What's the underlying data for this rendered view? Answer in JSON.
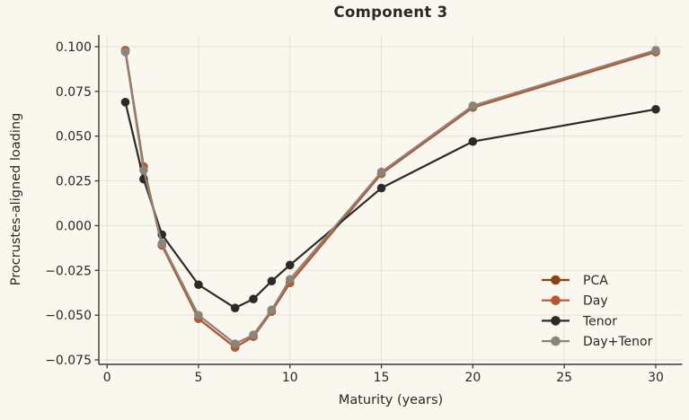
{
  "colors": {
    "background": "#faf7ef",
    "grid": "#e4e1d9",
    "axis": "#3b3833",
    "text": "#2b2823"
  },
  "chart_data": {
    "type": "line",
    "title": "Component 3",
    "xlabel": "Maturity (years)",
    "ylabel": "Procrustes-aligned loading",
    "x": [
      1,
      2,
      3,
      5,
      7,
      8,
      9,
      10,
      15,
      20,
      30
    ],
    "series": [
      {
        "name": "PCA",
        "color": "#8a4315",
        "values": [
          0.098,
          0.033,
          -0.011,
          -0.052,
          -0.068,
          -0.062,
          -0.048,
          -0.032,
          0.029,
          0.066,
          0.097
        ]
      },
      {
        "name": "Day",
        "color": "#b8562f",
        "values": [
          0.098,
          0.033,
          -0.011,
          -0.052,
          -0.068,
          -0.062,
          -0.048,
          -0.032,
          0.029,
          0.066,
          0.097
        ]
      },
      {
        "name": "Tenor",
        "color": "#2b2a28",
        "values": [
          0.069,
          0.026,
          -0.005,
          -0.033,
          -0.046,
          -0.041,
          -0.031,
          -0.022,
          0.021,
          0.047,
          0.065
        ]
      },
      {
        "name": "Day+Tenor",
        "color": "#8b847c",
        "values": [
          0.097,
          0.031,
          -0.01,
          -0.05,
          -0.066,
          -0.061,
          -0.047,
          -0.03,
          0.03,
          0.067,
          0.098
        ]
      }
    ],
    "xticks": [
      0,
      5,
      10,
      15,
      20,
      25,
      30
    ],
    "yticks": [
      0.1,
      0.075,
      0.05,
      0.025,
      0.0,
      -0.025,
      -0.05,
      -0.075
    ],
    "xlim": [
      -0.45,
      31.45
    ],
    "ylim": [
      -0.0775,
      0.1065
    ],
    "grid": true,
    "legend": {
      "position": "lower-right",
      "frame": false,
      "entries": [
        "PCA",
        "Day",
        "Tenor",
        "Day+Tenor"
      ]
    }
  }
}
